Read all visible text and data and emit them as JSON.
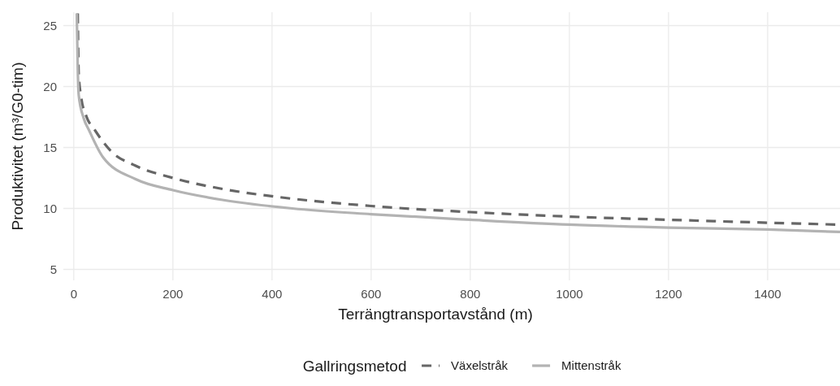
{
  "chart_data": {
    "type": "line",
    "xlabel": "Terrängtransportavstånd (m)",
    "ylabel": "Produktivitet (m³/G0-tim)",
    "legend_title": "Gallringsmetod",
    "legend": "bottom",
    "grid": true,
    "xlim": [
      -21,
      1546
    ],
    "ylim": [
      4.1,
      26.1
    ],
    "xticks": [
      0,
      200,
      400,
      600,
      800,
      1000,
      1200,
      1400
    ],
    "yticks": [
      5,
      10,
      15,
      20,
      25
    ],
    "series": [
      {
        "name": "Växelstråk",
        "color": "#666666",
        "line_style": "dashed",
        "x": [
          8,
          10,
          15,
          25,
          43,
          75,
          125,
          200,
          300,
          420,
          600,
          800,
          1000,
          1200,
          1400,
          1546
        ],
        "values": [
          26,
          21,
          19.1,
          17.6,
          16.4,
          14.7,
          13.5,
          12.5,
          11.6,
          10.9,
          10.2,
          9.7,
          9.33,
          9.07,
          8.83,
          8.67
        ]
      },
      {
        "name": "Mittenstråk",
        "color": "#b3b3b3",
        "line_style": "solid",
        "x": [
          6,
          8,
          10,
          20,
          31,
          59,
          125,
          200,
          300,
          441,
          600,
          800,
          1000,
          1200,
          1400,
          1546
        ],
        "values": [
          26,
          21.5,
          19.3,
          17.4,
          16.4,
          14.2,
          12.4,
          11.5,
          10.7,
          10,
          9.53,
          9.07,
          8.67,
          8.43,
          8.27,
          8.07
        ]
      }
    ]
  }
}
